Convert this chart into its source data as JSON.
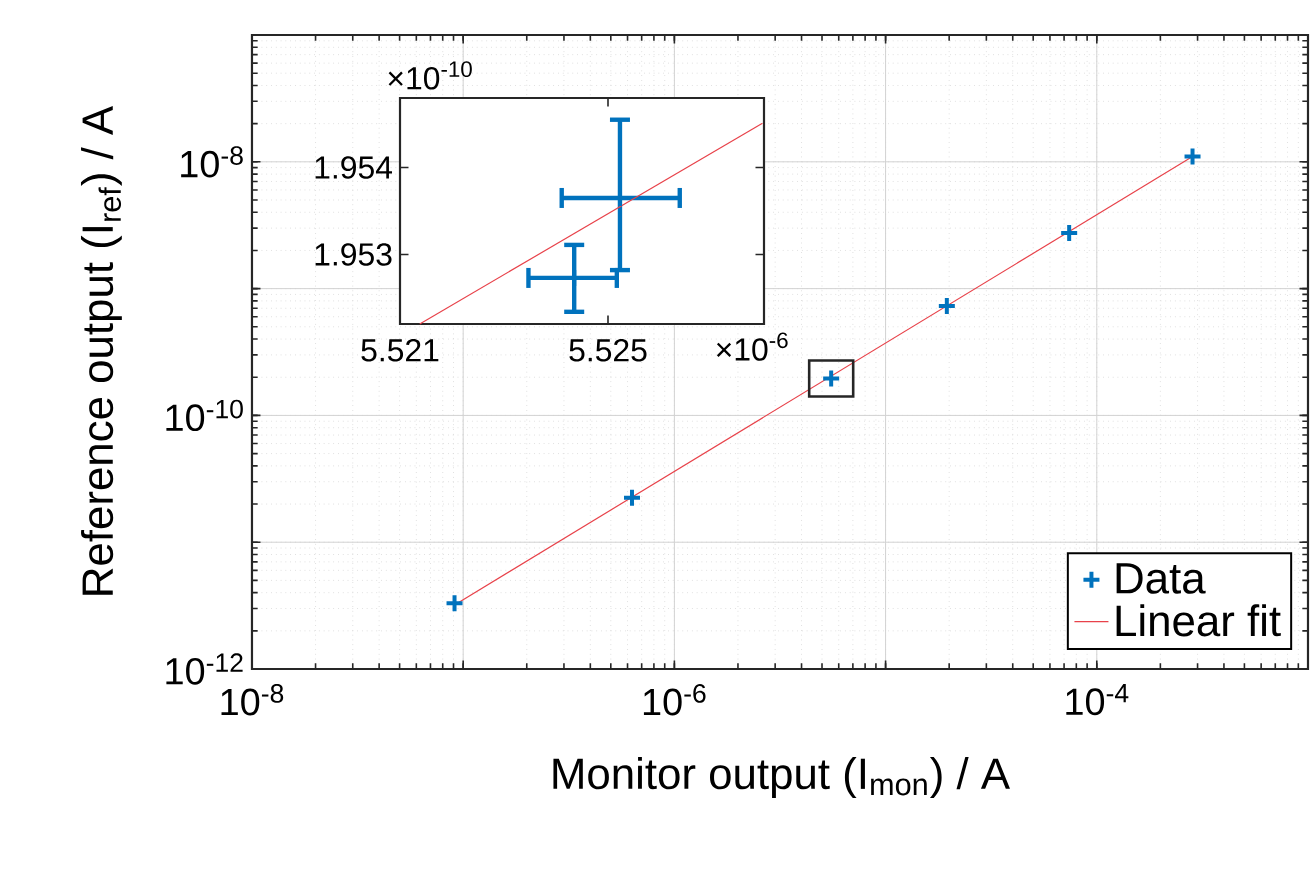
{
  "chart_data": [
    {
      "type": "scatter",
      "xlabel": "Monitor output (I$_{mon}$) / A",
      "ylabel": "Reference output (I$_{ref}$) / A",
      "x": [
        9.1e-08,
        6.3e-07,
        5.525e-06,
        1.95e-05,
        7.4e-05,
        0.000284
      ],
      "series": [
        {
          "name": "Data",
          "color": "#0072bd",
          "marker": "cross",
          "values": [
            3.3e-12,
            2.24e-11,
            1.954e-10,
            7.3e-10,
            2.75e-09,
            1.1e-08
          ]
        },
        {
          "name": "Linear fit",
          "type": "line",
          "color": "#e8424a",
          "marker": "none",
          "x": [
            9.1e-08,
            0.000284
          ],
          "values": [
            3.2e-12,
            1.1e-08
          ]
        }
      ],
      "xlim": [
        1e-08,
        0.001
      ],
      "ylim": [
        1e-12,
        1e-07
      ],
      "xticks": [
        {
          "value": 1e-08,
          "label": "10$^{-8}$"
        },
        {
          "value": 1e-07,
          "label": null
        },
        {
          "value": 1e-06,
          "label": "10$^{-6}$"
        },
        {
          "value": 1e-05,
          "label": null
        },
        {
          "value": 0.0001,
          "label": "10$^{-4}$"
        },
        {
          "value": 0.001,
          "label": null
        }
      ],
      "yticks": [
        {
          "value": 1e-12,
          "label": "10$^{-12}$"
        },
        {
          "value": 1e-11,
          "label": null
        },
        {
          "value": 1e-10,
          "label": "10$^{-10}$"
        },
        {
          "value": 1e-09,
          "label": null
        },
        {
          "value": 1e-08,
          "label": "10$^{-8}$"
        },
        {
          "value": 1e-07,
          "label": null
        }
      ],
      "log": "xy",
      "grid": true,
      "legend": "bottom right"
    },
    {
      "type": "scatter",
      "x": [
        5.52523,
        5.52435
      ],
      "series": [
        {
          "color": "#0072bd",
          "marker": "cross",
          "values": [
            1.95365,
            1.95273
          ],
          "errors": [
            [
              1.95282,
              1.95455
            ],
            [
              1.95234,
              1.95311
            ]
          ],
          "xerrors": [
            [
              5.52411,
              5.52638
            ],
            [
              5.52347,
              5.52517
            ]
          ]
        },
        {
          "type": "line",
          "color": "#e8424a",
          "marker": "none",
          "x": [
            5.52138,
            5.52797
          ],
          "values": [
            1.9522,
            1.95451
          ]
        }
      ],
      "xlim": [
        5.521,
        5.528
      ],
      "ylim": [
        1.9522,
        1.9548
      ],
      "xticks": [
        5.521,
        5.525
      ],
      "yticks": [
        1.953,
        1.954
      ],
      "annotations": [
        "×10$^{-10}$",
        "×10$^{-6}$"
      ]
    }
  ]
}
